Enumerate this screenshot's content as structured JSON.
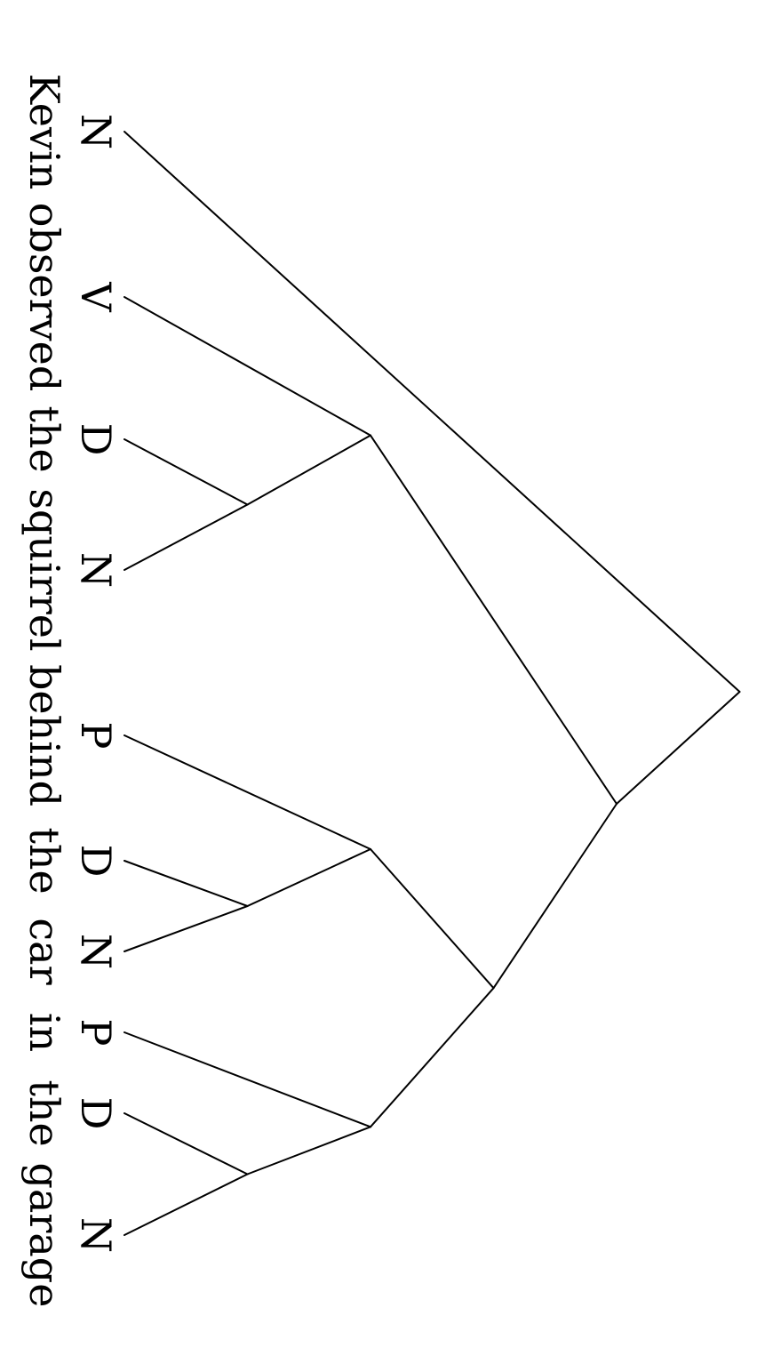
{
  "tree": {
    "tokens": [
      {
        "tag": "N",
        "word": "Kevin"
      },
      {
        "tag": "V",
        "word": "observed"
      },
      {
        "tag": "D",
        "word": "the"
      },
      {
        "tag": "N",
        "word": "squirrel"
      },
      {
        "tag": "P",
        "word": "behind"
      },
      {
        "tag": "D",
        "word": "the"
      },
      {
        "tag": "N",
        "word": "car"
      },
      {
        "tag": "P",
        "word": "in"
      },
      {
        "tag": "D",
        "word": "the"
      },
      {
        "tag": "N",
        "word": "garage"
      }
    ],
    "brackets": [
      {
        "id": "b1",
        "children": [
          "t2",
          "t3"
        ]
      },
      {
        "id": "b2",
        "children": [
          "t1",
          "b1"
        ]
      },
      {
        "id": "b3",
        "children": [
          "t5",
          "t6"
        ]
      },
      {
        "id": "b4",
        "children": [
          "t4",
          "b3"
        ]
      },
      {
        "id": "b5",
        "children": [
          "t8",
          "t9"
        ]
      },
      {
        "id": "b6",
        "children": [
          "t7",
          "b5"
        ]
      },
      {
        "id": "b7",
        "children": [
          "b4",
          "b6"
        ]
      },
      {
        "id": "b8",
        "children": [
          "b2",
          "b7"
        ]
      },
      {
        "id": "b9",
        "children": [
          "t0",
          "b8"
        ]
      }
    ],
    "line_color": "#000000",
    "text_color": "#000000",
    "orientation": "rotated-90-clockwise"
  }
}
